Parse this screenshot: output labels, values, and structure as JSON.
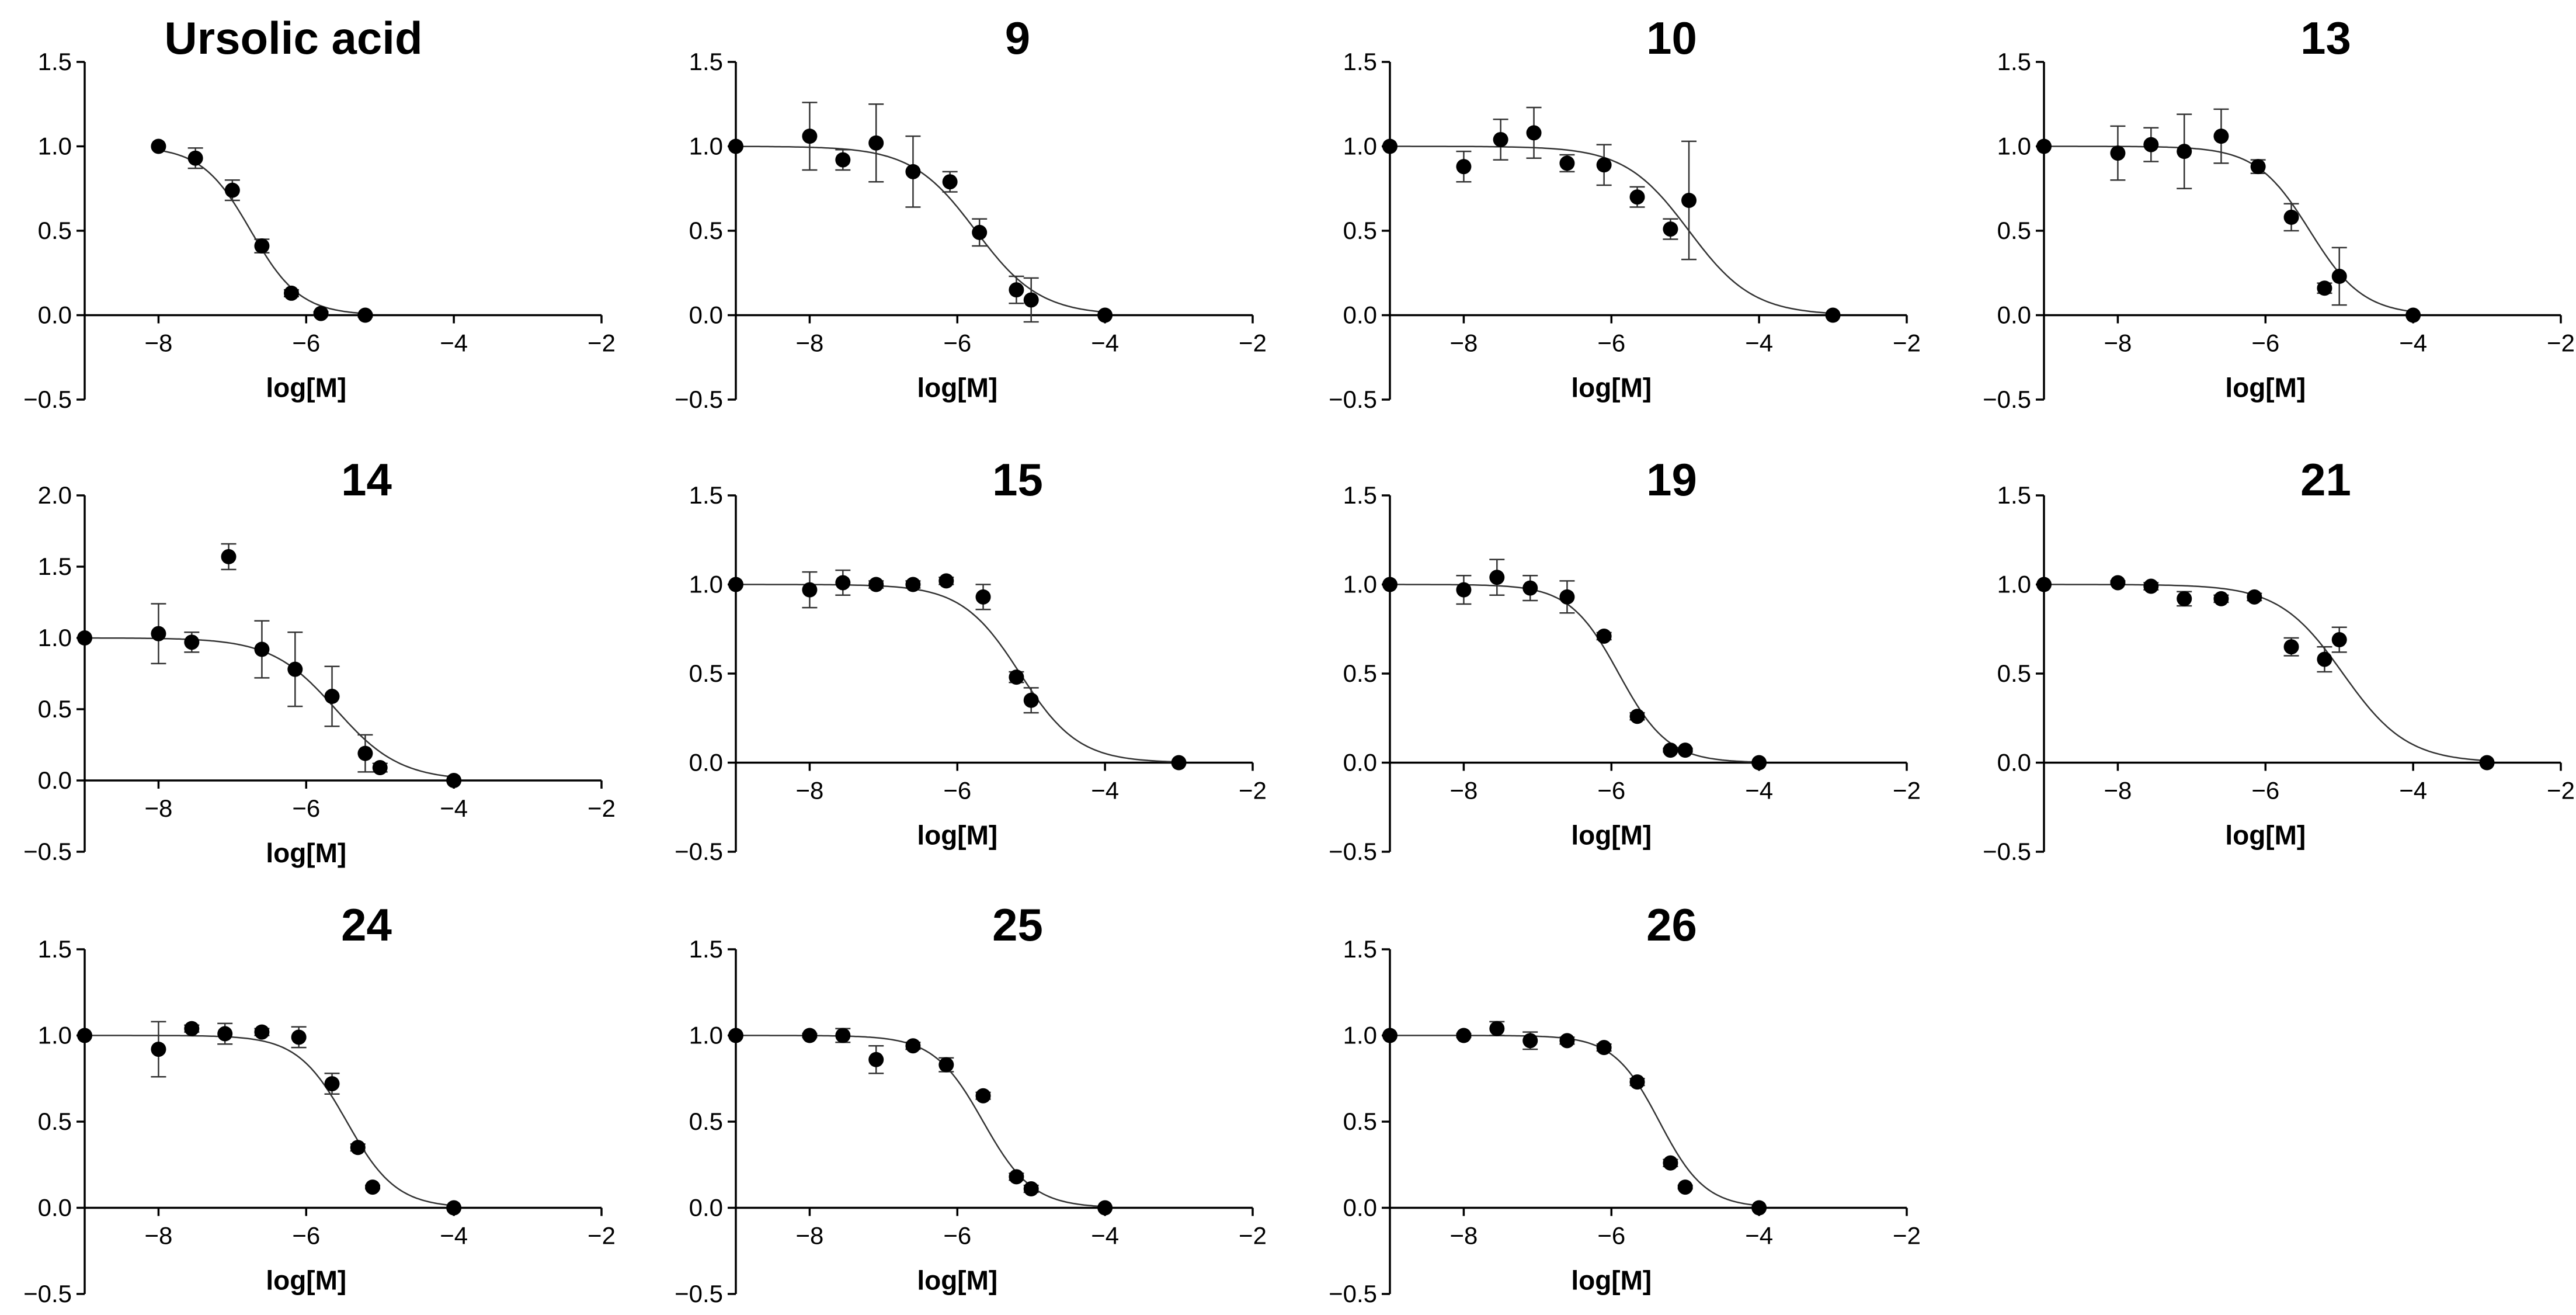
{
  "figure": {
    "background": "#ffffff",
    "point_color": "#000000",
    "curve_color": "#333333"
  },
  "chart_data": [
    {
      "type": "scatter",
      "title": "Ursolic acid",
      "xlabel": "log[M]",
      "ylabel": "",
      "xlim": [
        -9,
        -2
      ],
      "ylim": [
        -0.5,
        1.5
      ],
      "xticks": [
        -8,
        -6,
        -4,
        -2
      ],
      "xtick_labels": [
        "−8",
        "−6",
        "−4",
        "−2"
      ],
      "yticks": [
        -0.5,
        0.0,
        0.5,
        1.0,
        1.5
      ],
      "ytick_labels": [
        "−0.5",
        "0.0",
        "0.5",
        "1.0",
        "1.5"
      ],
      "points": [
        [
          -8.0,
          1.0,
          0
        ],
        [
          -7.5,
          0.93,
          0.06
        ],
        [
          -7.0,
          0.74,
          0.06
        ],
        [
          -6.6,
          0.41,
          0.04
        ],
        [
          -6.2,
          0.13,
          0.02
        ],
        [
          -5.8,
          0.01,
          0.01
        ],
        [
          -5.2,
          0.0,
          0.01
        ]
      ],
      "fit": {
        "top": 1.0,
        "bottom": 0.0,
        "logEC50": -6.75,
        "hill": -1.3,
        "x_start": -8.0,
        "x_end": -5.2
      }
    },
    {
      "type": "scatter",
      "title": "9",
      "xlabel": "log[M]",
      "ylabel": "",
      "xlim": [
        -9,
        -2
      ],
      "ylim": [
        -0.5,
        1.5
      ],
      "xticks": [
        -8,
        -6,
        -4,
        -2
      ],
      "xtick_labels": [
        "−8",
        "−6",
        "−4",
        "−2"
      ],
      "yticks": [
        -0.5,
        0.0,
        0.5,
        1.0,
        1.5
      ],
      "ytick_labels": [
        "−0.5",
        "0.0",
        "0.5",
        "1.0",
        "1.5"
      ],
      "points": [
        [
          -9.0,
          1.0,
          0
        ],
        [
          -8.0,
          1.06,
          0.2
        ],
        [
          -7.55,
          0.92,
          0.06
        ],
        [
          -7.1,
          1.02,
          0.23
        ],
        [
          -6.6,
          0.85,
          0.21
        ],
        [
          -6.1,
          0.79,
          0.06
        ],
        [
          -5.7,
          0.49,
          0.08
        ],
        [
          -5.2,
          0.15,
          0.08
        ],
        [
          -5.0,
          0.09,
          0.13
        ],
        [
          -4.0,
          0.0,
          0.0
        ]
      ],
      "fit": {
        "top": 1.0,
        "bottom": 0.0,
        "logEC50": -5.75,
        "hill": -1.0,
        "x_start": -9.0,
        "x_end": -4.0
      }
    },
    {
      "type": "scatter",
      "title": "10",
      "xlabel": "log[M]",
      "ylabel": "",
      "xlim": [
        -9,
        -2
      ],
      "ylim": [
        -0.5,
        1.5
      ],
      "xticks": [
        -8,
        -6,
        -4,
        -2
      ],
      "xtick_labels": [
        "−8",
        "−6",
        "−4",
        "−2"
      ],
      "yticks": [
        -0.5,
        0.0,
        0.5,
        1.0,
        1.5
      ],
      "ytick_labels": [
        "−0.5",
        "0.0",
        "0.5",
        "1.0",
        "1.5"
      ],
      "points": [
        [
          -9.0,
          1.0,
          0
        ],
        [
          -8.0,
          0.88,
          0.09
        ],
        [
          -7.5,
          1.04,
          0.12
        ],
        [
          -7.05,
          1.08,
          0.15
        ],
        [
          -6.6,
          0.9,
          0.05
        ],
        [
          -6.1,
          0.89,
          0.12
        ],
        [
          -5.65,
          0.7,
          0.06
        ],
        [
          -5.2,
          0.51,
          0.06
        ],
        [
          -4.95,
          0.68,
          0.35
        ],
        [
          -3.0,
          0.0,
          0.0
        ]
      ],
      "fit": {
        "top": 1.0,
        "bottom": 0.0,
        "logEC50": -4.95,
        "hill": -1.0,
        "x_start": -9.0,
        "x_end": -3.0
      }
    },
    {
      "type": "scatter",
      "title": "13",
      "xlabel": "log[M]",
      "ylabel": "",
      "xlim": [
        -9,
        -2
      ],
      "ylim": [
        -0.5,
        1.5
      ],
      "xticks": [
        -8,
        -6,
        -4,
        -2
      ],
      "xtick_labels": [
        "−8",
        "−6",
        "−4",
        "−2"
      ],
      "yticks": [
        -0.5,
        0.0,
        0.5,
        1.0,
        1.5
      ],
      "ytick_labels": [
        "−0.5",
        "0.0",
        "0.5",
        "1.0",
        "1.5"
      ],
      "points": [
        [
          -9.0,
          1.0,
          0
        ],
        [
          -8.0,
          0.96,
          0.16
        ],
        [
          -7.55,
          1.01,
          0.1
        ],
        [
          -7.1,
          0.97,
          0.22
        ],
        [
          -6.6,
          1.06,
          0.16
        ],
        [
          -6.1,
          0.88,
          0.04
        ],
        [
          -5.65,
          0.58,
          0.08
        ],
        [
          -5.2,
          0.16,
          0.03
        ],
        [
          -5.0,
          0.23,
          0.17
        ],
        [
          -4.0,
          0.0,
          0.0
        ]
      ],
      "fit": {
        "top": 1.0,
        "bottom": 0.0,
        "logEC50": -5.4,
        "hill": -1.2,
        "x_start": -9.0,
        "x_end": -4.0
      }
    },
    {
      "type": "scatter",
      "title": "14",
      "xlabel": "log[M]",
      "ylabel": "",
      "xlim": [
        -9,
        -2
      ],
      "ylim": [
        -0.5,
        2.0
      ],
      "xticks": [
        -8,
        -6,
        -4,
        -2
      ],
      "xtick_labels": [
        "−8",
        "−6",
        "−4",
        "−2"
      ],
      "yticks": [
        -0.5,
        0.0,
        0.5,
        1.0,
        1.5,
        2.0
      ],
      "ytick_labels": [
        "−0.5",
        "0.0",
        "0.5",
        "1.0",
        "1.5",
        "2.0"
      ],
      "points": [
        [
          -9.0,
          1.0,
          0
        ],
        [
          -8.0,
          1.03,
          0.21
        ],
        [
          -7.55,
          0.97,
          0.07
        ],
        [
          -7.05,
          1.57,
          0.09
        ],
        [
          -6.6,
          0.92,
          0.2
        ],
        [
          -6.15,
          0.78,
          0.26
        ],
        [
          -5.65,
          0.59,
          0.21
        ],
        [
          -5.2,
          0.19,
          0.13
        ],
        [
          -5.0,
          0.09,
          0.03
        ],
        [
          -4.0,
          0.0,
          0.0
        ]
      ],
      "fit": {
        "top": 1.0,
        "bottom": 0.0,
        "logEC50": -5.6,
        "hill": -1.0,
        "x_start": -9.0,
        "x_end": -4.0
      }
    },
    {
      "type": "scatter",
      "title": "15",
      "xlabel": "log[M]",
      "ylabel": "",
      "xlim": [
        -9,
        -2
      ],
      "ylim": [
        -0.5,
        1.5
      ],
      "xticks": [
        -8,
        -6,
        -4,
        -2
      ],
      "xtick_labels": [
        "−8",
        "−6",
        "−4",
        "−2"
      ],
      "yticks": [
        -0.5,
        0.0,
        0.5,
        1.0,
        1.5
      ],
      "ytick_labels": [
        "−0.5",
        "0.0",
        "0.5",
        "1.0",
        "1.5"
      ],
      "points": [
        [
          -9.0,
          1.0,
          0
        ],
        [
          -8.0,
          0.97,
          0.1
        ],
        [
          -7.55,
          1.01,
          0.07
        ],
        [
          -7.1,
          1.0,
          0.02
        ],
        [
          -6.6,
          1.0,
          0.02
        ],
        [
          -6.15,
          1.02,
          0.02
        ],
        [
          -5.65,
          0.93,
          0.07
        ],
        [
          -5.2,
          0.48,
          0.03
        ],
        [
          -5.0,
          0.35,
          0.07
        ],
        [
          -3.0,
          0.0,
          0.0
        ]
      ],
      "fit": {
        "top": 1.0,
        "bottom": 0.0,
        "logEC50": -5.15,
        "hill": -1.1,
        "x_start": -9.0,
        "x_end": -3.0
      }
    },
    {
      "type": "scatter",
      "title": "19",
      "xlabel": "log[M]",
      "ylabel": "",
      "xlim": [
        -9,
        -2
      ],
      "ylim": [
        -0.5,
        1.5
      ],
      "xticks": [
        -8,
        -6,
        -4,
        -2
      ],
      "xtick_labels": [
        "−8",
        "−6",
        "−4",
        "−2"
      ],
      "yticks": [
        -0.5,
        0.0,
        0.5,
        1.0,
        1.5
      ],
      "ytick_labels": [
        "−0.5",
        "0.0",
        "0.5",
        "1.0",
        "1.5"
      ],
      "points": [
        [
          -9.0,
          1.0,
          0
        ],
        [
          -8.0,
          0.97,
          0.08
        ],
        [
          -7.55,
          1.04,
          0.1
        ],
        [
          -7.1,
          0.98,
          0.07
        ],
        [
          -6.6,
          0.93,
          0.09
        ],
        [
          -6.1,
          0.71,
          0.02
        ],
        [
          -5.65,
          0.26,
          0.02
        ],
        [
          -5.2,
          0.07,
          0.01
        ],
        [
          -5.0,
          0.07,
          0.01
        ],
        [
          -4.0,
          0.0,
          0.0
        ]
      ],
      "fit": {
        "top": 1.0,
        "bottom": 0.0,
        "logEC50": -5.9,
        "hill": -1.3,
        "x_start": -9.0,
        "x_end": -4.0
      }
    },
    {
      "type": "scatter",
      "title": "21",
      "xlabel": "log[M]",
      "ylabel": "",
      "xlim": [
        -9,
        -2
      ],
      "ylim": [
        -0.5,
        1.5
      ],
      "xticks": [
        -8,
        -6,
        -4,
        -2
      ],
      "xtick_labels": [
        "−8",
        "−6",
        "−4",
        "−2"
      ],
      "yticks": [
        -0.5,
        0.0,
        0.5,
        1.0,
        1.5
      ],
      "ytick_labels": [
        "−0.5",
        "0.0",
        "0.5",
        "1.0",
        "1.5"
      ],
      "points": [
        [
          -9.0,
          1.0,
          0
        ],
        [
          -8.0,
          1.01,
          0.01
        ],
        [
          -7.55,
          0.99,
          0.02
        ],
        [
          -7.1,
          0.92,
          0.04
        ],
        [
          -6.6,
          0.92,
          0.02
        ],
        [
          -6.15,
          0.93,
          0.02
        ],
        [
          -5.65,
          0.65,
          0.05
        ],
        [
          -5.2,
          0.58,
          0.07
        ],
        [
          -5.0,
          0.69,
          0.07
        ],
        [
          -3.0,
          0.0,
          0.0
        ]
      ],
      "fit": {
        "top": 1.0,
        "bottom": 0.0,
        "logEC50": -4.95,
        "hill": -1.0,
        "x_start": -9.0,
        "x_end": -3.0
      }
    },
    {
      "type": "scatter",
      "title": "24",
      "xlabel": "log[M]",
      "ylabel": "",
      "xlim": [
        -9,
        -2
      ],
      "ylim": [
        -0.5,
        1.5
      ],
      "xticks": [
        -8,
        -6,
        -4,
        -2
      ],
      "xtick_labels": [
        "−8",
        "−6",
        "−4",
        "−2"
      ],
      "yticks": [
        -0.5,
        0.0,
        0.5,
        1.0,
        1.5
      ],
      "ytick_labels": [
        "−0.5",
        "0.0",
        "0.5",
        "1.0",
        "1.5"
      ],
      "points": [
        [
          -9.0,
          1.0,
          0
        ],
        [
          -8.0,
          0.92,
          0.16
        ],
        [
          -7.55,
          1.04,
          0.02
        ],
        [
          -7.1,
          1.01,
          0.06
        ],
        [
          -6.6,
          1.02,
          0.02
        ],
        [
          -6.1,
          0.99,
          0.06
        ],
        [
          -5.65,
          0.72,
          0.06
        ],
        [
          -5.3,
          0.35,
          0.02
        ],
        [
          -5.1,
          0.12,
          0.01
        ],
        [
          -4.0,
          0.0,
          0.0
        ]
      ],
      "fit": {
        "top": 1.0,
        "bottom": 0.0,
        "logEC50": -5.45,
        "hill": -1.3,
        "x_start": -9.0,
        "x_end": -4.0
      }
    },
    {
      "type": "scatter",
      "title": "25",
      "xlabel": "log[M]",
      "ylabel": "",
      "xlim": [
        -9,
        -2
      ],
      "ylim": [
        -0.5,
        1.5
      ],
      "xticks": [
        -8,
        -6,
        -4,
        -2
      ],
      "xtick_labels": [
        "−8",
        "−6",
        "−4",
        "−2"
      ],
      "yticks": [
        -0.5,
        0.0,
        0.5,
        1.0,
        1.5
      ],
      "ytick_labels": [
        "−0.5",
        "0.0",
        "0.5",
        "1.0",
        "1.5"
      ],
      "points": [
        [
          -9.0,
          1.0,
          0
        ],
        [
          -8.0,
          1.0,
          0.01
        ],
        [
          -7.55,
          1.0,
          0.04
        ],
        [
          -7.1,
          0.86,
          0.08
        ],
        [
          -6.6,
          0.94,
          0.02
        ],
        [
          -6.15,
          0.83,
          0.04
        ],
        [
          -5.65,
          0.65,
          0.02
        ],
        [
          -5.2,
          0.18,
          0.02
        ],
        [
          -5.0,
          0.11,
          0.02
        ],
        [
          -4.0,
          0.0,
          0.0
        ]
      ],
      "fit": {
        "top": 1.0,
        "bottom": 0.0,
        "logEC50": -5.65,
        "hill": -1.3,
        "x_start": -9.0,
        "x_end": -4.0
      }
    },
    {
      "type": "scatter",
      "title": "26",
      "xlabel": "log[M]",
      "ylabel": "",
      "xlim": [
        -9,
        -2
      ],
      "ylim": [
        -0.5,
        1.5
      ],
      "xticks": [
        -8,
        -6,
        -4,
        -2
      ],
      "xtick_labels": [
        "−8",
        "−6",
        "−4",
        "−2"
      ],
      "yticks": [
        -0.5,
        0.0,
        0.5,
        1.0,
        1.5
      ],
      "ytick_labels": [
        "−0.5",
        "0.0",
        "0.5",
        "1.0",
        "1.5"
      ],
      "points": [
        [
          -9.0,
          1.0,
          0
        ],
        [
          -8.0,
          1.0,
          0.01
        ],
        [
          -7.55,
          1.04,
          0.04
        ],
        [
          -7.1,
          0.97,
          0.05
        ],
        [
          -6.6,
          0.97,
          0.02
        ],
        [
          -6.1,
          0.93,
          0.02
        ],
        [
          -5.65,
          0.73,
          0.02
        ],
        [
          -5.2,
          0.26,
          0.02
        ],
        [
          -5.0,
          0.12,
          0.01
        ],
        [
          -4.0,
          0.0,
          0.0
        ]
      ],
      "fit": {
        "top": 1.0,
        "bottom": 0.0,
        "logEC50": -5.35,
        "hill": -1.4,
        "x_start": -9.0,
        "x_end": -4.0
      }
    }
  ]
}
